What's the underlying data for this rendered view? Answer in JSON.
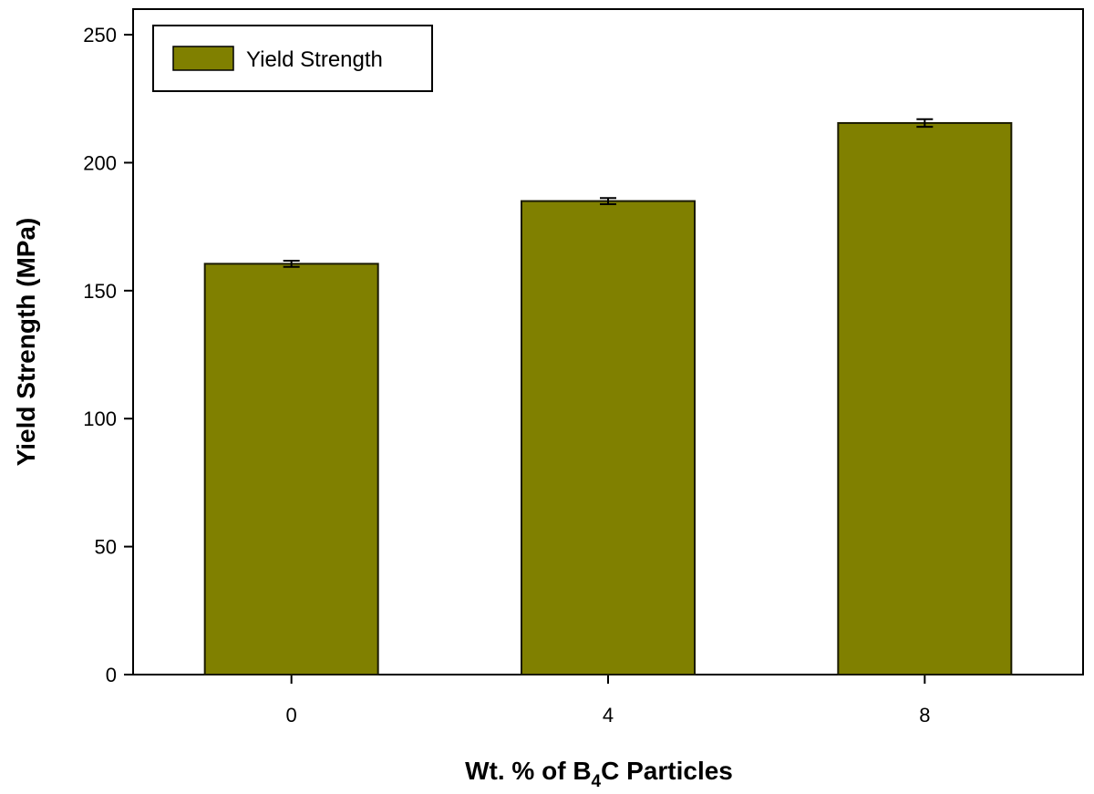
{
  "chart_data": {
    "type": "bar",
    "title": "",
    "xlabel": "Wt. % of B",
    "xlabel_subscript": "4",
    "xlabel_suffix": "C Particles",
    "ylabel": "Yield Strength (MPa)",
    "categories": [
      "0",
      "4",
      "8"
    ],
    "series": [
      {
        "name": "Yield Strength",
        "values": [
          160.5,
          185,
          215.5
        ],
        "errors": [
          1.2,
          1.2,
          1.5
        ]
      }
    ],
    "ylim": [
      0,
      260
    ],
    "yticks": [
      0,
      50,
      100,
      150,
      200,
      250
    ],
    "grid": false,
    "legend_position": "top-left",
    "colors": {
      "bar": "#808000",
      "edge": "#1a1a00"
    }
  }
}
